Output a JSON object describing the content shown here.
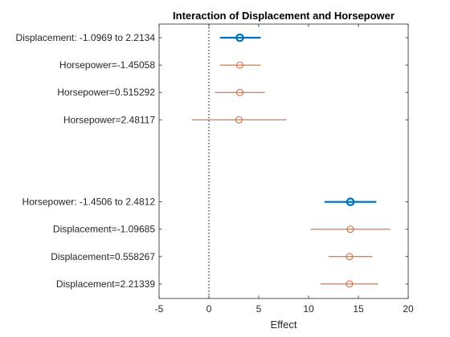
{
  "chart_data": {
    "type": "scatter",
    "title": "Interaction of Displacement and Horsepower",
    "xlabel": "Effect",
    "ylabel": "",
    "xlim": [
      -5,
      20
    ],
    "xticks": [
      -5,
      0,
      5,
      10,
      15,
      20
    ],
    "reference_line": {
      "x": 0,
      "style": "dotted",
      "color": "#000000"
    },
    "grid": false,
    "main_color": "#0072BD",
    "cond_color": "#D95319",
    "rows": [
      {
        "label": "Displacement: -1.0969 to 2.2134",
        "estimate": 3.1,
        "lower": 1.1,
        "upper": 5.2,
        "kind": "main"
      },
      {
        "label": "Horsepower=-1.45058",
        "estimate": 3.1,
        "lower": 1.1,
        "upper": 5.2,
        "kind": "conditional"
      },
      {
        "label": "Horsepower=0.515292",
        "estimate": 3.1,
        "lower": 0.6,
        "upper": 5.6,
        "kind": "conditional"
      },
      {
        "label": "Horsepower=2.48117",
        "estimate": 3.0,
        "lower": -1.7,
        "upper": 7.8,
        "kind": "conditional"
      },
      {
        "label": "Horsepower: -1.4506 to 2.4812",
        "estimate": 14.2,
        "lower": 11.6,
        "upper": 16.8,
        "kind": "main"
      },
      {
        "label": "Displacement=-1.09685",
        "estimate": 14.2,
        "lower": 10.2,
        "upper": 18.2,
        "kind": "conditional"
      },
      {
        "label": "Displacement=0.558267",
        "estimate": 14.1,
        "lower": 12.0,
        "upper": 16.4,
        "kind": "conditional"
      },
      {
        "label": "Displacement=2.21339",
        "estimate": 14.1,
        "lower": 11.2,
        "upper": 17.0,
        "kind": "conditional"
      }
    ]
  }
}
